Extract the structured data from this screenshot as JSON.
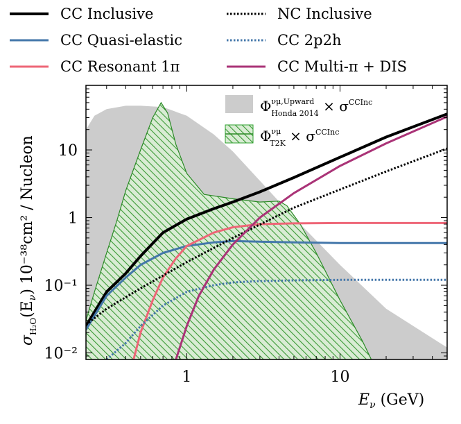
{
  "chart_data": {
    "type": "line",
    "x_scale": "log",
    "y_scale": "log",
    "xlim": [
      0.22,
      50
    ],
    "ylim": [
      0.008,
      90
    ],
    "xlabel": "E_ν (GeV)",
    "ylabel": "σ_H2O(E_ν) 10⁻³⁸cm² / Nucleon",
    "x_ticks": [
      {
        "value": 1,
        "label": "1"
      },
      {
        "value": 10,
        "label": "10"
      }
    ],
    "y_ticks": [
      {
        "value": 0.01,
        "label": "10⁻²"
      },
      {
        "value": 0.1,
        "label": "10⁻¹"
      },
      {
        "value": 1,
        "label": "1"
      },
      {
        "value": 10,
        "label": "10"
      }
    ],
    "grid": false,
    "legend_position": "top",
    "series": [
      {
        "name": "CC Inclusive",
        "color": "#000000",
        "style": "solid",
        "x": [
          0.22,
          0.3,
          0.4,
          0.5,
          0.7,
          1.0,
          1.5,
          2.0,
          3.0,
          5.0,
          10,
          20,
          50
        ],
        "y": [
          0.025,
          0.08,
          0.15,
          0.27,
          0.6,
          0.95,
          1.35,
          1.7,
          2.4,
          3.9,
          7.8,
          15.5,
          34
        ]
      },
      {
        "name": "CC Quasi-elastic",
        "color": "#4477aa",
        "style": "solid",
        "x": [
          0.22,
          0.3,
          0.4,
          0.5,
          0.7,
          1.0,
          1.5,
          2.0,
          3.0,
          5.0,
          10,
          20,
          50
        ],
        "y": [
          0.022,
          0.07,
          0.13,
          0.2,
          0.3,
          0.38,
          0.43,
          0.45,
          0.44,
          0.43,
          0.42,
          0.42,
          0.42
        ]
      },
      {
        "name": "CC Resonant 1π",
        "color": "#ee6677",
        "style": "solid",
        "x": [
          0.45,
          0.5,
          0.6,
          0.7,
          0.85,
          1.0,
          1.5,
          2.0,
          3.0,
          5.0,
          10,
          20,
          50
        ],
        "y": [
          0.008,
          0.02,
          0.06,
          0.13,
          0.25,
          0.38,
          0.6,
          0.72,
          0.8,
          0.82,
          0.83,
          0.83,
          0.83
        ]
      },
      {
        "name": "NC Inclusive",
        "color": "#000000",
        "style": "dotted",
        "x": [
          0.22,
          0.3,
          0.5,
          1.0,
          2.0,
          5.0,
          10,
          20,
          50
        ],
        "y": [
          0.026,
          0.045,
          0.09,
          0.22,
          0.5,
          1.4,
          2.6,
          4.8,
          10.5
        ]
      },
      {
        "name": "CC 2p2h",
        "color": "#4477aa",
        "style": "dotted",
        "x": [
          0.3,
          0.4,
          0.5,
          0.7,
          1.0,
          1.5,
          2.0,
          3.0,
          5.0,
          10,
          20,
          50
        ],
        "y": [
          0.008,
          0.014,
          0.025,
          0.05,
          0.08,
          0.1,
          0.11,
          0.115,
          0.118,
          0.12,
          0.12,
          0.12
        ]
      },
      {
        "name": "CC Multi-π + DIS",
        "color": "#aa3377",
        "style": "solid",
        "x": [
          0.85,
          1.0,
          1.2,
          1.5,
          2.0,
          3.0,
          5.0,
          10,
          20,
          50
        ],
        "y": [
          0.008,
          0.025,
          0.07,
          0.17,
          0.4,
          1.0,
          2.3,
          5.8,
          12.5,
          31
        ]
      }
    ],
    "areas": [
      {
        "name": "Φ^{νμ,Upward}_{Honda 2014} × σ^{CCInc}",
        "color": "#cccccc",
        "pattern": "solid",
        "x": [
          0.22,
          0.25,
          0.3,
          0.4,
          0.5,
          0.7,
          1.0,
          1.5,
          2.0,
          3.0,
          5.0,
          10,
          20,
          50
        ],
        "y": [
          20,
          32,
          40,
          45,
          45,
          43,
          32,
          17,
          9.5,
          3.5,
          1.0,
          0.2,
          0.045,
          0.012
        ]
      },
      {
        "name": "Φ^{νμ}_{T2K} × σ^{CCInc}",
        "color": "#2ca02c",
        "pattern": "hatch",
        "x": [
          0.22,
          0.25,
          0.3,
          0.35,
          0.4,
          0.5,
          0.6,
          0.68,
          0.75,
          0.85,
          1.0,
          1.3,
          2.0,
          3.0,
          4.0,
          4.5,
          5.5,
          7.0,
          10,
          14,
          16
        ],
        "y": [
          0.03,
          0.08,
          0.3,
          0.9,
          2.5,
          10,
          30,
          50,
          35,
          12,
          4.5,
          2.2,
          1.9,
          1.7,
          1.75,
          1.5,
          0.8,
          0.3,
          0.06,
          0.015,
          0.008
        ]
      }
    ]
  },
  "legend": {
    "items": [
      {
        "label": "CC Inclusive",
        "color": "#000000",
        "style": "solid"
      },
      {
        "label": "NC Inclusive",
        "color": "#000000",
        "style": "dotted"
      },
      {
        "label": "CC Quasi-elastic",
        "color": "#4477aa",
        "style": "solid"
      },
      {
        "label": "CC 2p2h",
        "color": "#4477aa",
        "style": "dotted"
      },
      {
        "label": "CC Resonant 1π",
        "color": "#ee6677",
        "style": "solid"
      },
      {
        "label": "CC Multi-π + DIS",
        "color": "#aa3377",
        "style": "solid"
      }
    ]
  },
  "inset_legend": {
    "honda_symbol": "Φ",
    "honda_sup": "νμ,Upward",
    "honda_sub": "Honda 2014",
    "honda_times": " × σ",
    "honda_sup2": "CCInc",
    "t2k_symbol": "Φ",
    "t2k_sup": "νμ",
    "t2k_sub": "T2K",
    "t2k_times": " × σ",
    "t2k_sup2": "CCInc"
  },
  "axes": {
    "x_label_main": "E",
    "x_label_sub": "ν",
    "x_label_unit": " (GeV)",
    "y_label_sigma": "σ",
    "y_label_sub": "H₂O",
    "y_label_mid": "(E",
    "y_label_nu": "ν",
    "y_label_rest": ")  10⁻³⁸cm² / Nucleon"
  }
}
